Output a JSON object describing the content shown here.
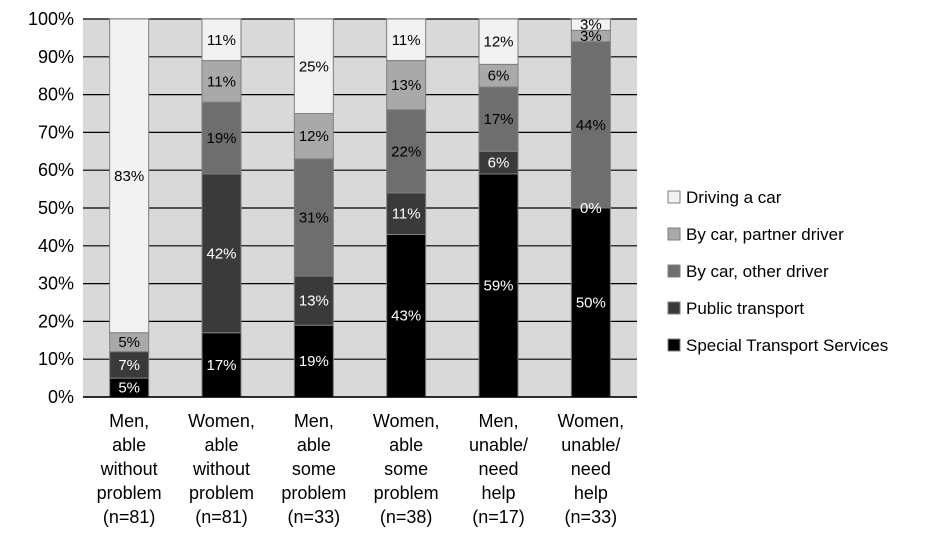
{
  "chart_data": {
    "type": "bar",
    "stacked": true,
    "percent": true,
    "title": "",
    "xlabel": "",
    "ylabel": "",
    "ylim": [
      0,
      100
    ],
    "grid": true,
    "legend_placement": "right",
    "yticks": [
      "0%",
      "10%",
      "20%",
      "30%",
      "40%",
      "50%",
      "60%",
      "70%",
      "80%",
      "90%",
      "100%"
    ],
    "categories": [
      [
        "Men,",
        "able",
        "without",
        "problem",
        "(n=81)"
      ],
      [
        "Women,",
        "able",
        "without",
        "problem",
        "(n=81)"
      ],
      [
        "Men,",
        "able",
        "some",
        "problem",
        "(n=33)"
      ],
      [
        "Women,",
        "able",
        "some",
        "problem",
        "(n=38)"
      ],
      [
        "Men,",
        "unable/",
        "need",
        "help",
        "(n=17)"
      ],
      [
        "Women,",
        "unable/",
        "need",
        "help",
        "(n=33)"
      ]
    ],
    "series": [
      {
        "name": "Special Transport Services",
        "color": "#000000",
        "label_color": "#ffffff",
        "values": [
          5,
          17,
          19,
          43,
          59,
          50
        ],
        "labels": [
          "5%",
          "17%",
          "19%",
          "43%",
          "59%",
          "50%"
        ]
      },
      {
        "name": "Public transport",
        "color": "#3a3a3a",
        "label_color": "#ffffff",
        "values": [
          7,
          42,
          13,
          11,
          6,
          0
        ],
        "labels": [
          "7%",
          "42%",
          "13%",
          "11%",
          "6%",
          "0%"
        ]
      },
      {
        "name": "By car, other driver",
        "color": "#6e6e6e",
        "label_color": "#000000",
        "values": [
          0,
          19,
          31,
          22,
          17,
          44
        ],
        "labels": [
          "",
          "19%",
          "31%",
          "22%",
          "17%",
          "44%"
        ]
      },
      {
        "name": "By car, partner driver",
        "color": "#a9a9a9",
        "label_color": "#000000",
        "values": [
          5,
          11,
          12,
          13,
          6,
          3
        ],
        "labels": [
          "5%",
          "11%",
          "12%",
          "13%",
          "6%",
          "3%"
        ]
      },
      {
        "name": "Driving a car",
        "color": "#f2f2f2",
        "label_color": "#000000",
        "values": [
          83,
          11,
          25,
          11,
          12,
          3
        ],
        "labels": [
          "83%",
          "11%",
          "25%",
          "11%",
          "12%",
          "3%"
        ]
      }
    ],
    "colors": {
      "plot_background": "#d9d9d9",
      "gridline": "#000000",
      "bar_outline": "#7f7f7f"
    }
  }
}
